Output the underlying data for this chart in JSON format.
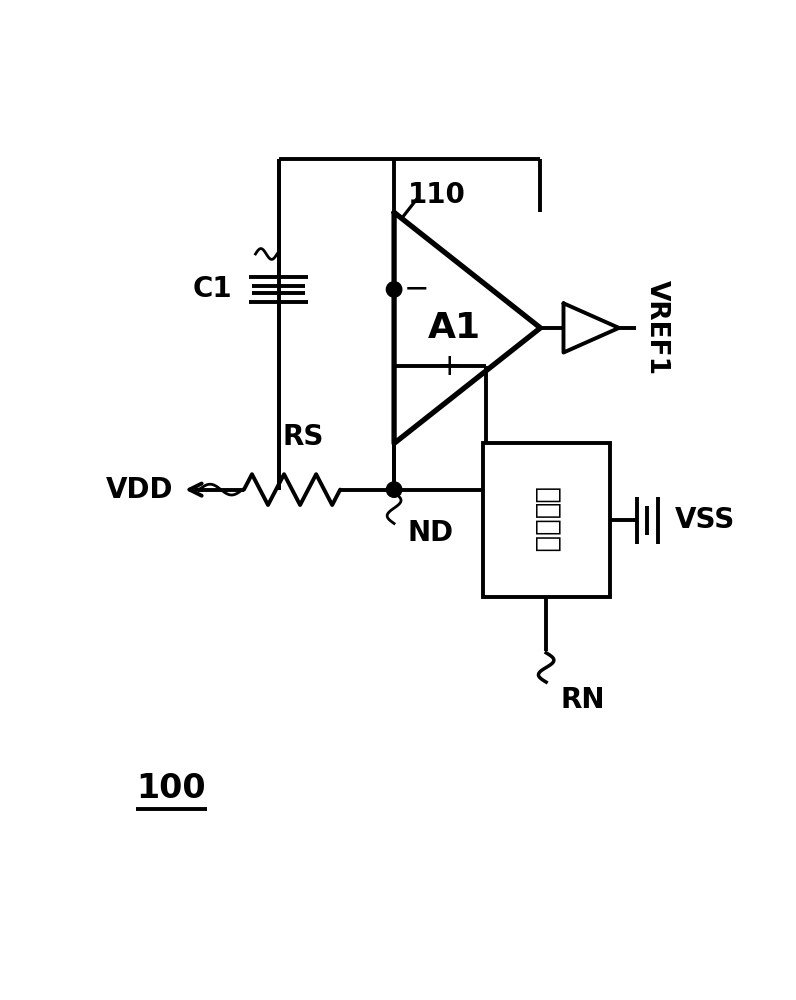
{
  "bg_color": "#ffffff",
  "line_color": "#000000",
  "line_width": 2.8,
  "fig_width": 7.96,
  "fig_height": 10.0,
  "label_100": "100",
  "label_110": "110",
  "label_A1": "A1",
  "label_C1": "C1",
  "label_RS": "RS",
  "label_VDD": "VDD",
  "label_ND": "ND",
  "label_RN": "RN",
  "label_VSS": "VSS",
  "label_VREF1": "VREF1",
  "label_box": "稳定电路",
  "font_size_main": 20,
  "font_size_amp_label": 26,
  "font_size_ref": 18
}
